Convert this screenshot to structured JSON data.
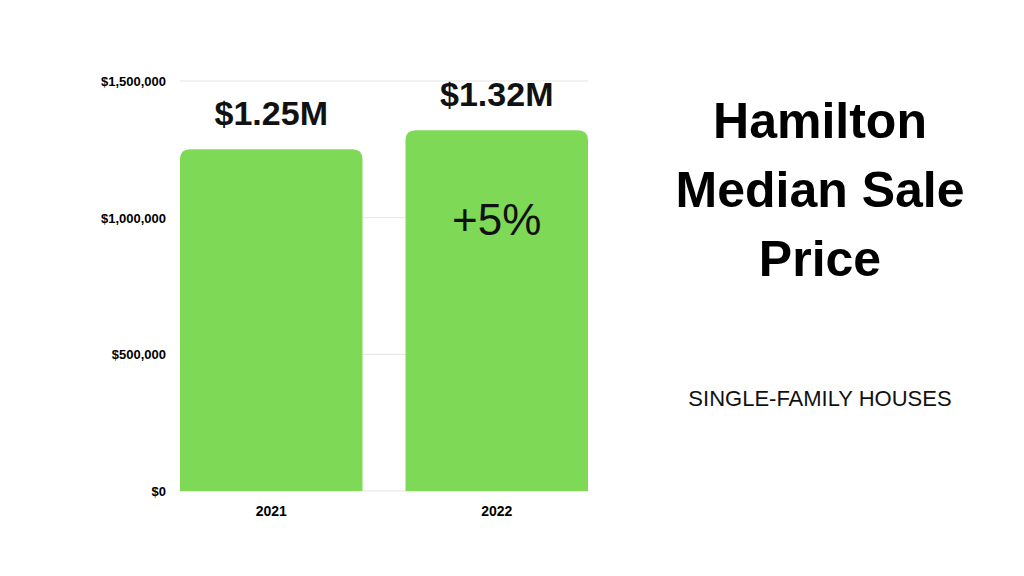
{
  "chart_data": {
    "type": "bar",
    "title": "Hamilton Median Sale Price",
    "subtitle": "SINGLE-FAMILY HOUSES",
    "categories": [
      "2021",
      "2022"
    ],
    "values": [
      1250000,
      1320000
    ],
    "value_labels": [
      "$1.25M",
      "$1.32M"
    ],
    "color": "#7ed957",
    "ylim": [
      0,
      1500000
    ],
    "yticks": [
      {
        "value": 0,
        "label": "$0"
      },
      {
        "value": 500000,
        "label": "$500,000"
      },
      {
        "value": 1000000,
        "label": "$1,000,000"
      },
      {
        "value": 1500000,
        "label": "$1,500,000"
      }
    ],
    "grid": true,
    "data_labels": true,
    "annotations": [
      {
        "text": "+5%",
        "category": "2022"
      }
    ]
  }
}
